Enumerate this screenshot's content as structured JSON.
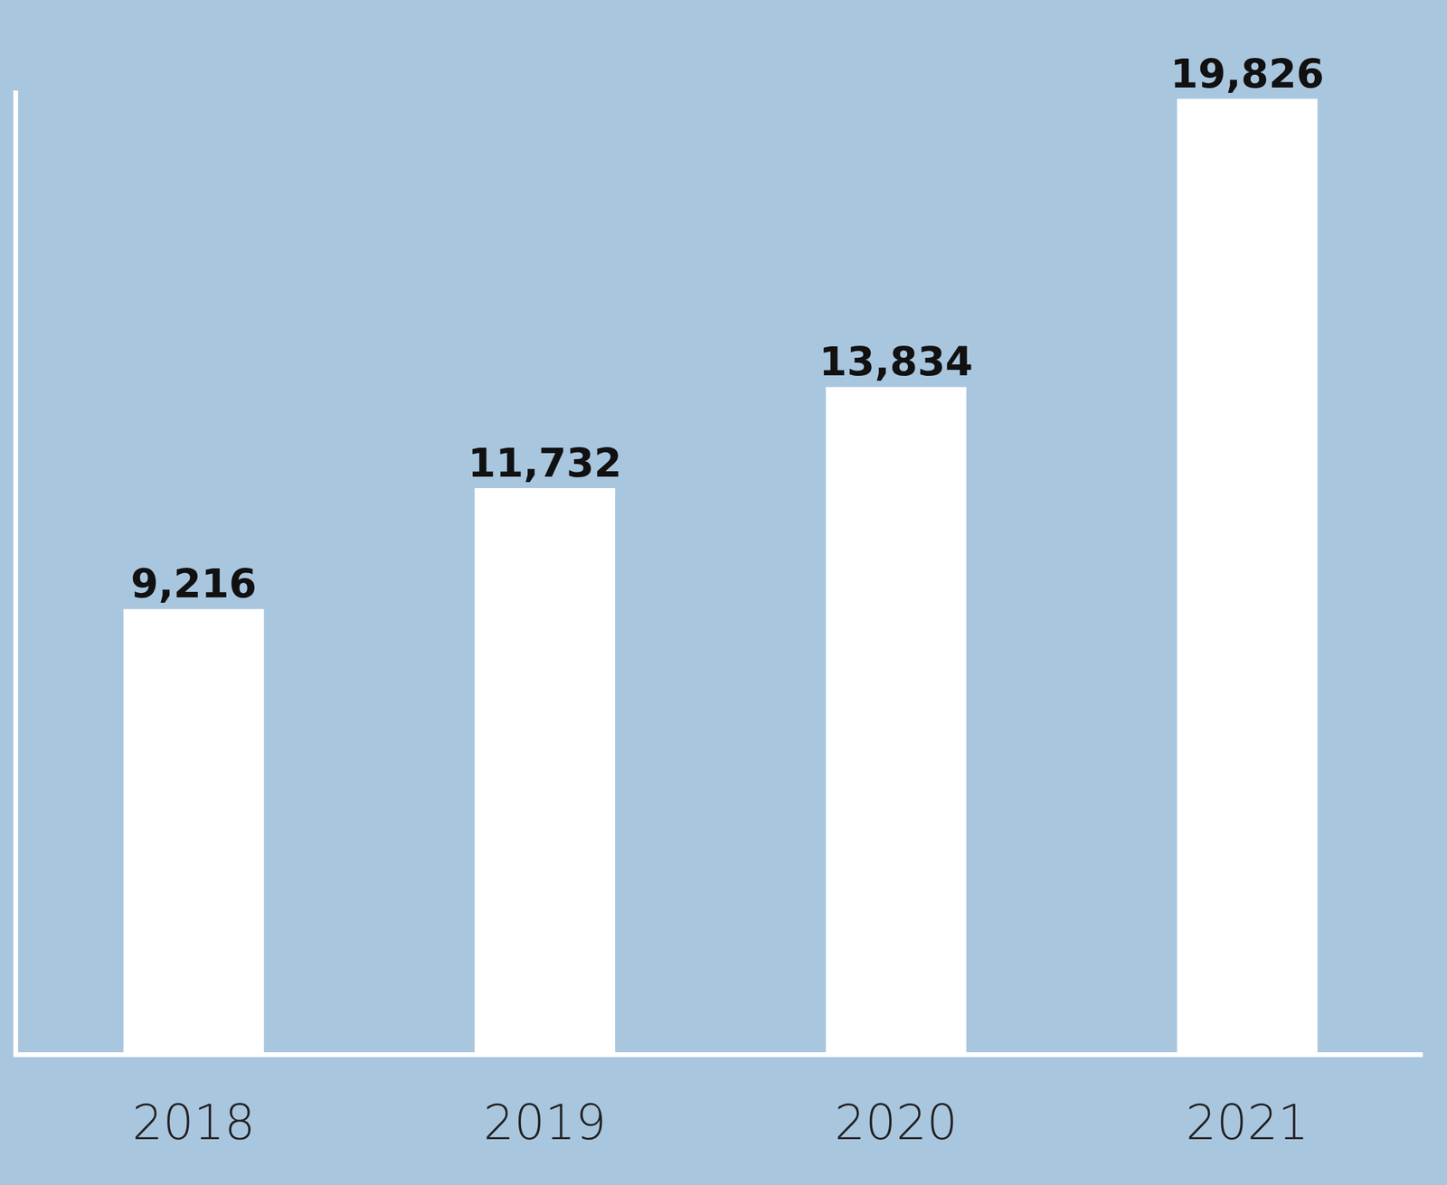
{
  "chart_data": {
    "type": "bar",
    "categories": [
      "2018",
      "2019",
      "2020",
      "2021"
    ],
    "values": [
      9216,
      11732,
      13834,
      19826
    ],
    "value_labels": [
      "9,216",
      "11,732",
      "13,834",
      "19,826"
    ],
    "color": "#ffffff",
    "ylim": [
      0,
      20000
    ],
    "grid": false,
    "data_labels": true,
    "tick_labels": "x"
  }
}
